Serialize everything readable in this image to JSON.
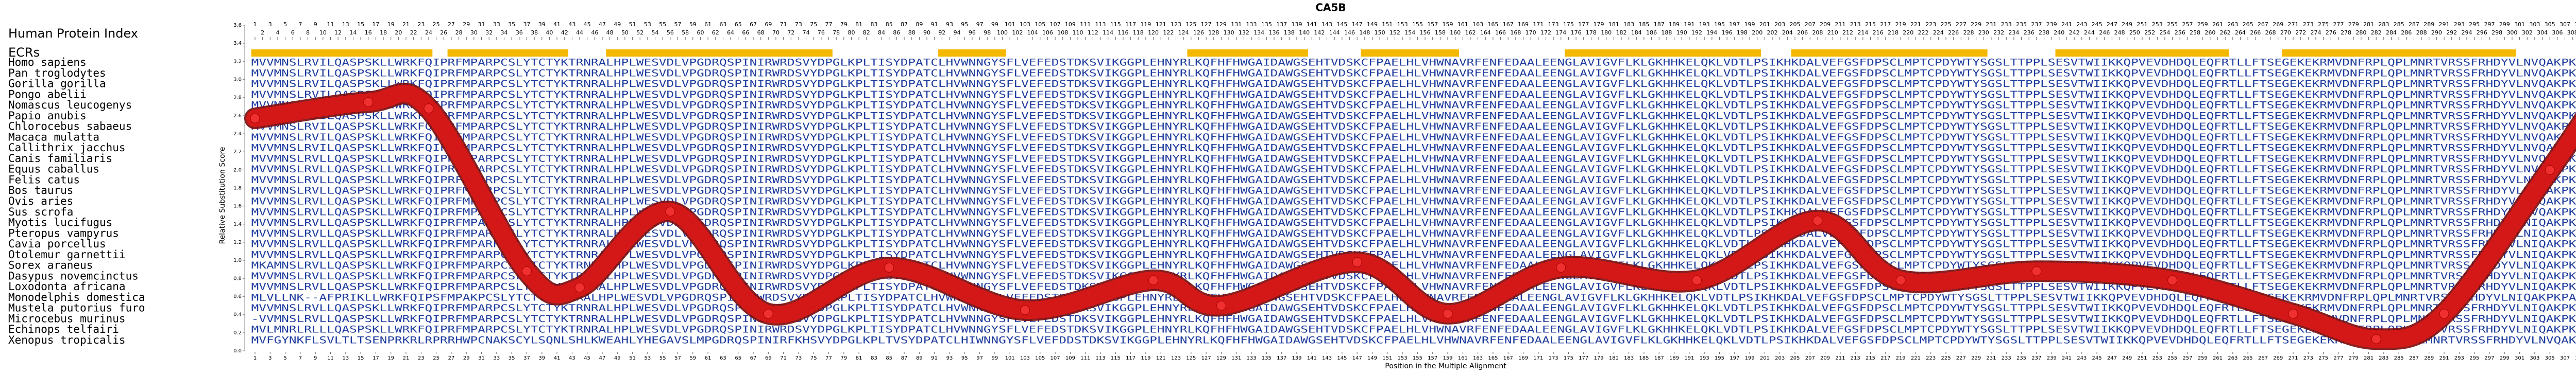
{
  "chart_data": {
    "type": "line",
    "title": "CA5B",
    "index_label": "Human Protein Index",
    "ecr_label": "ECRs",
    "y_label": "Relative Substitution Score",
    "x_label": "Position in the Multiple Alignment",
    "xlim": [
      1,
      317
    ],
    "xticks": [
      1,
      2,
      3,
      4,
      5,
      6,
      7,
      8,
      9,
      10,
      11,
      12,
      13,
      14,
      15,
      16,
      17,
      18,
      19,
      20,
      21,
      22,
      23,
      24,
      25,
      26,
      27,
      28,
      29,
      30,
      31,
      32,
      33,
      34,
      35,
      36,
      37,
      38,
      39,
      40,
      41,
      42,
      43,
      44,
      45,
      46,
      47,
      48,
      49,
      50,
      51,
      52,
      53,
      54,
      55,
      56,
      57,
      58,
      59,
      60,
      61,
      62,
      63,
      64,
      65,
      66,
      67,
      68,
      69,
      70,
      71,
      72,
      73,
      74,
      75,
      76,
      77,
      78,
      79,
      80,
      81,
      82,
      83,
      84,
      85,
      86,
      87,
      88,
      89,
      90,
      91,
      92,
      93,
      94,
      95,
      96,
      97,
      98,
      99,
      100,
      101,
      102,
      103,
      104,
      105,
      106,
      107,
      108,
      109,
      110,
      111,
      112,
      113,
      114,
      115,
      116,
      117,
      118,
      119,
      120,
      121,
      122,
      123,
      124,
      125,
      126,
      127,
      128,
      129,
      130,
      131,
      132,
      133,
      134,
      135,
      136,
      137,
      138,
      139,
      140,
      141,
      142,
      143,
      144,
      145,
      146,
      147,
      148,
      149,
      150,
      151,
      152,
      153,
      154,
      155,
      156,
      157,
      158,
      159,
      160,
      161,
      162,
      163,
      164,
      165,
      166,
      167,
      168,
      169,
      170,
      171,
      172,
      173,
      174,
      175,
      176,
      177,
      178,
      179,
      180,
      181,
      182,
      183,
      184,
      185,
      186,
      187,
      188,
      189,
      190,
      191,
      192,
      193,
      194,
      195,
      196,
      197,
      198,
      199,
      200,
      201,
      202,
      203,
      204,
      205,
      206,
      207,
      208,
      209,
      210,
      211,
      212,
      213,
      214,
      215,
      216,
      217,
      218,
      219,
      220,
      221,
      222,
      223,
      224,
      225,
      226,
      227,
      228,
      229,
      230,
      231,
      232,
      233,
      234,
      235,
      236,
      237,
      238,
      239,
      240,
      241,
      242,
      243,
      244,
      245,
      246,
      247,
      248,
      249,
      250,
      251,
      252,
      253,
      254,
      255,
      256,
      257,
      258,
      259,
      260,
      261,
      262,
      263,
      264,
      265,
      266,
      267,
      268,
      269,
      270,
      271,
      272,
      273,
      274,
      275,
      276,
      277,
      278,
      279,
      280,
      281,
      282,
      283,
      284,
      285,
      286,
      287,
      288,
      289,
      290,
      291,
      292,
      293,
      294,
      295,
      296,
      297,
      298,
      299,
      300,
      301,
      302,
      303,
      304,
      305,
      306,
      307,
      308,
      309,
      310,
      311,
      312,
      313,
      314,
      315,
      316,
      317
    ],
    "ylim": [
      0,
      3.6
    ],
    "yticks": [
      {
        "value": 0,
        "label": "0.0"
      },
      {
        "value": 0.2,
        "label": "0.2"
      },
      {
        "value": 0.4,
        "label": "0.4"
      },
      {
        "value": 0.6,
        "label": "0.6"
      },
      {
        "value": 0.8,
        "label": "0.8"
      },
      {
        "value": 1,
        "label": "1.0"
      },
      {
        "value": 1.2,
        "label": "1.2"
      },
      {
        "value": 1.4,
        "label": "1.4"
      },
      {
        "value": 1.6,
        "label": "1.6"
      },
      {
        "value": 1.8,
        "label": "1.8"
      },
      {
        "value": 2,
        "label": "2.0"
      },
      {
        "value": 2.2,
        "label": "2.2"
      },
      {
        "value": 2.4,
        "label": "2.4"
      },
      {
        "value": 2.6,
        "label": "2.6"
      },
      {
        "value": 2.8,
        "label": "2.8"
      },
      {
        "value": 3,
        "label": "3.0"
      },
      {
        "value": 3.2,
        "label": "3.2"
      },
      {
        "value": 3.4,
        "label": "3.4"
      },
      {
        "value": 3.6,
        "label": "3.6"
      }
    ],
    "x": [
      1,
      16,
      24,
      37,
      44,
      56,
      69,
      85,
      103,
      120,
      129,
      147,
      159,
      174,
      192,
      208,
      219,
      237,
      255,
      271,
      282,
      291,
      305,
      314,
      317
    ],
    "values": [
      2.57,
      2.75,
      2.68,
      0.88,
      0.7,
      1.54,
      0.41,
      0.92,
      0.45,
      0.78,
      0.5,
      0.98,
      0.41,
      0.92,
      0.78,
      1.44,
      0.78,
      0.88,
      0.78,
      0.41,
      0.13,
      0.41,
      2.0,
      3.1,
      3.3
    ],
    "color": "#d81818",
    "ecrs": [
      [
        1,
        24
      ],
      [
        27,
        42
      ],
      [
        48,
        77
      ],
      [
        92,
        100
      ],
      [
        125,
        140
      ],
      [
        148,
        160
      ],
      [
        175,
        200
      ],
      [
        205,
        230
      ],
      [
        240,
        262
      ],
      [
        270,
        300
      ]
    ],
    "ecr_color": "#f5b800",
    "sequence_color": "#1f3d9e",
    "species": [
      "Homo sapiens",
      "Pan troglodytes",
      "Gorilla gorilla",
      "Pongo abelii",
      "Nomascus leucogenys",
      "Papio anubis",
      "Chlorocebus sabaeus",
      "Macaca mulatta",
      "Callithrix jacchus",
      "Canis familiaris",
      "Equus caballus",
      "Felis catus",
      "Bos taurus",
      "Ovis aries",
      "Sus scrofa",
      "Myotis lucifugus",
      "Pteropus vampyrus",
      "Cavia porcellus",
      "Otolemur garnettii",
      "Sorex araneus",
      "Dasypus novemcinctus",
      "Loxodonta africana",
      "Monodelphis domestica",
      "Mustela putorius furo",
      "Microcebus murinus",
      "Echinops telfairi",
      "Xenopus tropicalis"
    ],
    "sequences": [
      "MVVMNSLRVILQASPSKLLWRKFQIPRFMPARPCSLYTCTYKTRNRALHPLWESVDLVPGDRQSPINIRWRDSVYDPGLKPLTISYDPATCLHVWNNGYSFLVEFEDSTDKSVIKGGPLEHNYRLKQFHFHWGAIDAWGSEHTVDSKCFPAELHLVHWNAVRFENFEDAALEENGLAVIGVFLKLGKHHKELQKLVDTLPSIKHKDALVEFGSFDPSCLMPTCPDYWTYSGSLTTPPLSESVTWIIKKQPVEVDHDQLEQFRTLLFTSEGEKEKRMVDNFRPLQPLMNRTVRSSFRHDYVLNVQAKPKPATSQATP",
      "MVVMNSLRVILQASPSKLLWRKFQIPRFMPARPCSLYTCTYKTRNRALHPLWESVDLVPGDRQSPINIRWRDSVYDPGLKPLTISYDPATCLHVWNNGYSFLVEFEDSTDKSVIKGGPLEHNYRLKQFHFHWGAIDAWGSEHTVDSKCFPAELHLVHWNAVRFENFEDAALEENGLAVIGVFLKLGKHHKELQKLVDTLPSIKHKDALVEFGSFDPSCLMPTCPDYWTYSGSLTTPPLSESVTWIIKKQPVEVDHDQLEQFRTLLFTSEGEKEKRMVDNFRPLQPLMNRTVRSSFRHDYVLNVQAKPKPATSQATP",
      "MVVMNSLRVILQASPSKLLWRKFQIPRFMPARPCSLYTCTYKTRNRALHPLWESVDLVPGDRQSPINIRWRDSVYDPGLKPLTISYDPATCLHVWNNGYSFLVEFEDSTDKSVIKGGPLEHNYRLKQFHFHWGAIDAWGSEHTVDSKCFPAELHLVHWNAVRFENFEDAALEENGLAVIGVFLKLGKHHKELQKLVDTLPSIKHKDALVEFGSFDPSCLMPTCPDYWTYSGSLTTPPLSESVTWIIKKQPVEVDHDQLEQFRTLLFTSEGEKEKRMVDNFRPLQPLMNRTVRSSFRHDYVLNVQAKPKPATSQATP",
      "MVVMNSLRVILQASPSKLLWRKFQIPRFMPARPCSLYTCTYKTRNRALHPLWESVDLVPGDRQSPINIRWRDSVYDPGLKPLTISYDPATCLHVWNNGYSFLVEFEDSTDKSVIKGGPLEHNYRLKQFHFHWGAIDAWGSEHTVDSKCFPAELHLVHWNAVRFENFEDAALEENGLAVIGVFLKLGKHHKELQKLVDTLPSIKHKDALVEFGSFDPSCLMPTCPDYWTYSGSLTTPPLSESVTWIIKKQPVEVDHDQLEQFRTLLFTSEGEKEKRMVDNFRPLQPLMNRTVRSSFRHDYVLNVQAKPKPATSQATP",
      "MVVMNSLRVILQASPSKLLWRKFQIPRFMPARPCSLYTCTYKTRNRALHPLWESVDLVPGDRQSPINIRWRDSVYDPGLKPLTISYDPATCLHVWNNGYSFLVEFEDSTDKSVIKGGPLEHNYRLKQFHFHWGAIDAWGSEHTVDSKCFPAELHLVHWNAVRFENFEDAALEENGLAVIGVFLKLGKHHKELQKLVDTLPSIKHKDALVEFGSFDPSCLMPTCPDYWTYSGSLTTPPLSESVTWIIKKQPVEVDHDQLEQFRTLLFTSEGEKEKRMVDNFRPLQPLMNRTVRSSFRHDYVLNVQAKPKPATSQATP",
      "MVVMNSLRVILQASPSKLLWRKFQIPRFMPARPCSLYTCTYKTRNRALHPLWESVDLVPGDRQSPINIRWRDSVYDPGLKPLTISYDPATCLHVWNNGYSFLVEFEDSTDKSVIKGGPLEHNYRLKQFHFHWGAIDAWGSEHTVDSKCFPAELHLVHWNAVRFENFEDAALEENGLAVIGVFLKLGKHHKELQKLVDTLPSIKHKDALVEFGSFDPSCLMPTCPDYWTYSGSLTTPPLSESVTWIIKKQPVEVDHDQLEQFRTLLFTSEGEKEKRMVDNFRPLQPLMNRTVRSSFRHDYVLNVQAKPKPATSQATP",
      "MVVMNSLRVILQASPSKLLWRKFQIPRFMPARPCSLYTCTYKTRNRALHPLWESVDLVPGDRQSPINIRWRDSVYDPGLKPLTISYDPATCLHVWNNGYSFLVEFEDSTDKSVIKGGPLEHNYRLKQFHFHWGAIDAWGSEHTVDSKCFPAELHLVHWNAVRFENFEDAALEENGLAVIGVFLKLGKHHKELQKLVDTLPSIKHKDALVEFGSFDPSCLMPTCPDYWTYSGSLTTPPLSESVTWIIKKQPVEVDHDQLEQFRTLLFTSEGEKEKRMVDNFRPLQPLMNRTVRSSFRHDYVLNVQAKPKPATSQATP",
      "MVVMNSLRVILQASPSKLLWRKFQIPRFMPARPCSLYTCTYKTRNRALHPLWESVDLVPGDRQSPINIRWRDSVYDPGLKPLTISYDPATCLHVWNNGYSFLVEFEDSTDKSVIKGGPLEHNYRLKQFHFHWGAIDAWGSEHTVDSKCFPAELHLVHWNAVRFENFEDAALEENGLAVIGVFLKLGKHHKELQKLVDTLPSIKHKDALVEFGSFDPSCLMPTCPDYWTYSGSLTTPPLSESVTWIIKKQPVEVDHDQLEQFRTLLFTSEGEKEKRMVDNFRPLQPLMNRTVRSSFRHDYVLNVQAKPKPATSQATP",
      "MVVMNSLRVILQASPSKLLWRKFQIPRFMPARPCSLYTCTYKTRNRALHPLWESVDLVPGDRQSPINIRWRDSVYDPGLKPLTISYDPATCLHVWNNGYSFLVEFEDSTDKSVIKGGPLEHNYRLKQFHFHWGAIDAWGSEHTVDSKCFPAELHLVHWNAVRFENFEDAALEENGLAVIGVFLKLGKHHKELQKLVDTLPSIKHKDALVEFGSFDPSCLMPTCPDYWTYSGSLTTPPLSESVTWIIKKQPVEVDHDQLEQFRTLLFTSEGEKEKRMVDNFRPLQPLMNRTVRSSFRHDYVLNVQAKPKPATSQATP",
      "MVVMNSLRVLLQASPSKLLWRKFQIPRFMPARPCSLYTCTYKTRNRALHPLWESVDLVPGDRQSPINIRWRDSVYDPGLKPLTISYDPATCLHVWNNGYSFLVEFEDSTDKSVIKGGPLEHNYRLKQFHFHWGAIDAWGSEHTVDSKCFPAELHLVHWNAVRFENFEDAALEENGLAVIGVFLKLGKHHKELQKLVDTLPSIKHKDALVEFGSFDPSCLMPTCPDYWTYSGSLTTPPLSESVTWIIKKQPVEVDHDQLEQFRTLLFTSEGEKEKRMVDNFRPLQPLMNRTVRSSFRHDYVLNVQAKPKPATSQATP",
      "MVVMNSLRVLLQASPSKLLWRKFQIPRFMPARPCSLYTCTYKTRNRALHPLWESVDLVPGDRQSPINIRWRDSVYDPGLKPLTISYDPATCLHVWNNGYSFLVEFEDSTDKSVIKGGPLEHNYRLKQFHFHWGAIDAWGSEHTVDSKCFPAELHLVHWNAVRFENFEDAALEENGLAVIGVFLKLGKHHKELQKLVDTLPSIKHKDALVEFGSFDPSCLMPTCPDYWTYSGSLTTPPLSESVTWIIKKQPVEVDHDQLEQFRTLLFTSEGEKEKRMVDNFRPLQPLMNRTVRSSFRHDYVLNVQAKPKPATSQATP",
      "MVVMNSLRVLLQASPSKLLWRKFQIPRFMPARPCSLYTCTYKTRNRALHPLWESVDLVPGDRQSPINIRWRDSVYDPGLKPLTISYDPATCLHVWNNGYSFLVEFEDSTDKSVIKGGPLEHNYRLKQFHFHWGAIDAWGSEHTVDSKCFPAELHLVHWNAVRFENFEDAALEENGLAVIGVFLKLGKHHKELQKLVDTLPSIKHKDALVEFGSFDPSCLMPTCPDYWTYSGSLTTPPLSESVTWIIKKQPVEVDHDQLEQFRTLLFTSEGEKEKRMVDNFRPLQPLMNRTVRSSFRHDYVLNVQAKPKPATSQATP",
      "MVVMNSLRVLLQASPSKLLWRKFQIPRFMPARPCSLYTCTYKTRNRALHPLWESVDLVPGDRQSPINIRWRDSVYDPGLKPLTISYDPATCLHVWNNGYSFLVEFEDSTDKSVIKGGPLEHNYRLKQFHFHWGAIDAWGSEHTVDSKCFPAELHLVHWNAVRFENFEDAALEENGLAVIGVFLKLGKHHKELQKLVDTLPSIKHKDALVEFGSFDPSCLMPTCPDYWTYSGSLTTPPLSESVTWIIKKQPVEVDHDQLEQFRTLLFTSEGEKEKRMVDNFRPLQPLMNRTVRSSFRHDYVLNVQAKPKPATSQSTP",
      "MVVMNSLRVLLQASPSKLLWRKFQIPRFMPARPCSLYTCTYKTRNRALHPLWESVDLVPGDRQSPINIRWRDSVYDPGLKPLTISYDPATCLHVWNNGYSFLVEFEDSTDKSVIKGGPLEHNYRLKQFHFHWGAIDAWGSEHTVDSKCFPAELHLVHWNAVRFENFEDAALEENGLAVIGVFLKLGKHHKELQKLVDTLPSIKHKDALVEFGSFDPSCLMPTCPDYWTYSGSLTTPPLSESVTWIIKKQPVEVDHDQLEQFRTLLFTSEGEKEKRMVDNFRPLQPLMNRTVRSSFRHDYVLNVQAKPKPATSQSTP",
      "MVVMNSLRVLLQASPSKLLWRKFQIPRFMPARPCSLYTCTYKTRNRALHPLWESVDLVPGDRQSPINIRWRDSVYDPGLKPLTISYDPATCLHVWNNGYSFLVEFEDSTDKSVIKGGPLEHNYRLKQFHFHWGAIDAWGSEHTVDSKCFPAELHLVHWNAVRFENFEDAALEENGLAVIGVFLKLGKHHKELQKLVDTLPSIKHKDALVEFGSFDPSCLMPTCPDYWTYSGSLTTPPLSESVTWIIKKQPVEVDHDQLEQFRTLLFTSEGEKEKRMVDNFRPLQPLMNRTVRSSFRHDYVLNVQAKPKPATSQSTP",
      "MVVMNSLRVLLQASPSKLLWRKFQIPRFMPARPCSLYTCTYKTRNRALHPLWESVDLVPGDRQSPINIRWRDSVYDPGLKPLTISYDPATCLHVWNNGYSFLVEFEDSTDKSVIKGGPLEHNYRLKQFHFHWGAIDAWGSEHTVDSKCFPAELHLVHWNAVRFENFEDAALEENGLAVIGVFLKLGKHHKELQKLVDTLPSIKHKDALVEFGSFDPSCLMPTCPDYWTYSGSLTTPPLSESVTWIIKKQPVEVDHDQLEQFRTLLFTSEGEKEKRMVDNFRPLQPLMNRTVRSSFRHDYVLNIQAKPKPATSQSTP",
      "MVVMNSLRVLLQASPSKLLWRKFQIPRFMPARPCSLYTCTYKTRNRALHPLWESVDLVPGDRQSPINIRWRDSVYDPGLKPLTISYDPATCLHVWNNGYSFLVEFEDSTDKSVIKGGPLEHNYRLKQFHFHWGAIDAWGSEHTVDSKCFPAELHLVHWNAVRFENFEDAALEENGLAVIGVFLKLGKHHKELQKLVDTLPSIKHKDALVEFGSFDPSCLMPTCPDYWTYSGSLTTPPLSESVTWIIKKQPVEVDHDQLEQFRTLLFTSEGEKEKRMVDNFRPLQPLMNRTVRSSFRHDYVLNIQAKPKPATSQSTP",
      "MVVMNSLRVLLQASPSKLLWRKFQIPRFMPARPCSLYTCTYKTRNRALHPLWESVDLVPGDRQSPINIRWRDSVYDPGLKPLTISYDPATCLHVWNNGYSFLVEFEDSTDKSVIKGGPLEHNYRLKQFHFHWGAIDAWGSEHTVDSKCFPAELHLVHWNAVRFENFEDAALEENGLAVIGVFLKLGKHHKELQKLVDTLPSIKHKDALVEFGSFDPSCLMPTCPDYWTYSGSLTTPPLSESVTWIIKKQPVEVDHDQLEQFRTLLFTSEGEKEKRMVDNFRPLQPLMNRTVRSSFRHDYVLNIQAKPKPATSQSTP",
      "MVVMNSLRVLLQASPSKLLWRKFQIPRFMPARPCSLYTCTYKTRNRALHPLWESVDLVPGDRQSPINIRWRDSVYDPGLKPLTISYDPATCLHVWNNGYSFLVEFEDSTDKSVIKGGPLEHNYRLKQFHFHWGAIDAWGSEHTVDSKCFPAELHLVHWNAVRFENFEDAALEENGLAVIGVFLKLGKHHKELQKLVDTLPSIKHKDALVEFGSFDPSCLMPTCPDYWTYSGSLTTPPLSESVTWIIKKQPVEVDHDQLEQFRTLLFTSEGEKEKRMVDNFRPLQPLMNRTVRSSFRHDYVLNIQAKPKPATSQSTP",
      "MKAMNSLRVLLQASPSKLLWRKFQIPRFMPARPCSLYTCTYKTRNRALHPLWESVDLVPGDRQSPINIRWRDSVYDPGLKPLTISYDPATCLHVWNNGYSFLVEFEDSTDKSVIKGGPLEHNYRLKQFHFHWGAIDAWGSEHTVDSKCFPAELHLVHWNAVRFENFEDAALEENGLAVIGVFLKLGKHHKELQKLVDTLPSIKHKDALVEFGSFDPSCLMPTCPDYWTYSGSLTTPPLSESVTWIIKKQPVEVDHDQLEQFRTLLFTSEGEKEKRMVDNFRPLQPLMNRTVRSSFRHDYVLNIQAKPKPATSQSTP",
      "MVVMNSLRVLLQASPSKLLWRKFQIPRFMPARPCSLYTCTYKTRNRALHPLWESVDLVPGDRQSPINIRWRDSVYDPGLKPLTISYDPATCLHVWNNGYSFLVEFEDSTDKSVIKGGPLEHNYRLKQFHFHWGAIDAWGSEHTVDSKCFPAELHLVHWNAVRFENFEDAALEENGLAVIGVFLKLGKHHKELQKLVDTLPSIKHKDALVEFGSFDPSCLMPTCPDYWTYSGSLTTPPLSESVTWIIKKQPVEVDHDQLEQFRTLLFTSEGEKEKRMVDNFRPLQPLMNRTVRSSFRHDYVLNIQAKPKPATSQSTP",
      "MVVMNSLRVLLQASPSKLLWRKFQIPRFMPARPCSLYTCTYKTRNRALHPLWESVDLVPGDRQSPINIRWRDSVYDPGLKPLTISYDPATCLHVWNNGYSFLVEFEDSTDKSVIKGGPLEHNYRLKQFHFHWGAIDAWGSEHTVDSKCFPAELHLVHWNAVRFENFEDAALEENGLAVIGVFLKLGKHHKELQKLVDTLPSIKHKDALVEFGSFDPSCLMPTCPDYWTYSGSLTTPPLSESVTWIIKKQPVEVDHDQLEQFRTLLFTSEGEKEKRMVDNFRPLQPLMNRTVRSSFRHDYVLNIQAKPKPATSQSTP",
      "MLVLLNK--AFPRIKLLWRKFQIPSFMPAKPCSLYTCTYKTRNRALHPLWESVDLVPGDRQSPINIRWRDSVYDPGLKPLTISYDPATCLHVWNNGYSFLVEFEDSTDKSVIKGGPLEHNYRLKQFHFHWGAIDAWGSEHTVDSKCFPAELHLVHWNAVRFENFEDAALEENGLAVIGVFLKLGKHHKELQKLVDTLPSIKHKDALVEFGSFDPSCLMPTCPDYWTYSGSLTTPPLSESVTWIIKKQPVEVDHDQLEQFRTLLFTSEGEKEKRMVDNFRPLQPLMNRTVRSSFRHDYVLNIQAKPKPATSQSTP",
      "MVVMNSLRVLLQASPSKLLWRKFQIPRFMPARPCSLYTCTYKTRNRALHPLWESVDLVPGDRQSPINIRWRDSVYDPGLKPLTISYDPATCLHVWNNGYSFLVEFEDSTDKSVIKGGPLEHNYRLKQFHFHWGAIDAWGSEHTVDSKCFPAELHLVHWNAVRFENFEDAALEENGLAVIGVFLKLGKHHKELQKLVDTLPSIKHKDALVEFGSFDPSCLMPTCPDYWTYSGSLTTPPLSESVTWIIKKQPVEVDHDQLEQFRTLLFTSEGEKEKRMVDNFRPLQPLMNRTVRSSFRHDYVLNIQAKPKPATSQSTP",
      "-VVMNSLRVLLQASPSKLLWRKFQIPRFMPARPCSLYTCTYKTRNRALHPLWESVDLVPGDRQSPINIRWRDSVYDPGLKPLTISYDPATCLHVWNNGYSFLVEFEDSTDKSVIKGGPLEHNYRLKQFHFHWGAIDAWGSEHTVDSKCFPAELHLVHWNAVRFENFEDAALEENGLAVIGVFLKLGKHHKELQKLVDTLPSIKHKDALVEFGSFDPSCLMPTCPDYWTYSGSLTTPPLSESVTWIIKKQPVEVDHDQLEQFRTLLFTSEGEKEKRMVDNFRPLQPLMNRTVRSSFRHDYVLNIQAKPKPATSQSTP",
      "MVLMNRLRLLLQASPSKLLWRKFQIPRFMPARPCSLYTCTYKTRNRALHPLWESVDLVPGDRQSPINIRWRDSVYDPGLKPLTISYDPATCLHVWNNGYSFLVEFEDSTDKSVIKGGPLEHNYRLKQFHFHWGAIDAWGSEHTVDSKCFPAELHLVHWNAVRFENFEDAALEENGLAVIGVFLKLGKHHKELQKLVDTLPSIKHKDALVEFGSFDPSCLMPTCPDYWTYSGSLTTPPLSESVTWIIKKQPVEVDHDQLEQFRTLLFTSEGEKEKRMVDNFRPLQPLMNRTVRSSFRHDYVLNIQAKPKPATSQSTP",
      "MVFGYNKFLSVLTLTSENPRKRLRPRRHWPCNAKSCYLSQNLSHLKWEAHLYHEGAVSLMPGDRQSPINIRFKHSVYDPGLKPLTVSYDPATCLHIWNNGYSFLVEFDDSTDKSVIKGGPLEHNYRLKQFHFHWGAIDAWGSEHTVDSKCFPAELHLVHWNAVRFENFEDAALEENGLAVIGVFLKLGKHHKELQKLVDTLPSIKHKDALVEFGSFDPSCLMPTCPDYWTYSGSLTTPPLSESVTWIIKKQPVEVDHDQLEQFRTLLFTSEGEKEKRMVDNFRPLQPLMNRTVRSSFRHDYVLNVQAKPKPATSQSTP"
    ]
  }
}
